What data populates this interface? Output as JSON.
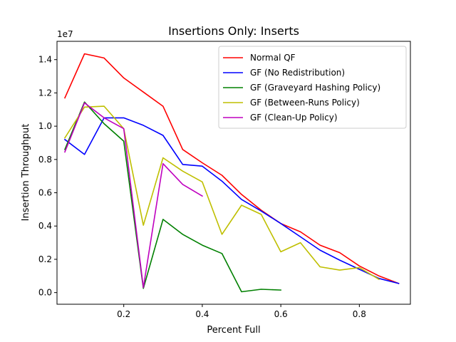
{
  "chart_data": {
    "type": "line",
    "title": "Insertions Only: Inserts",
    "xlabel": "Percent Full",
    "ylabel": "Insertion Throughput",
    "y_offset_label": "1e7",
    "xlim": [
      0.03,
      0.93
    ],
    "ylim": [
      -0.07,
      1.51
    ],
    "x_ticks": [
      0.2,
      0.4,
      0.6,
      0.8
    ],
    "x_tick_labels": [
      "0.2",
      "0.4",
      "0.6",
      "0.8"
    ],
    "y_ticks": [
      0.0,
      0.2,
      0.4,
      0.6,
      0.8,
      1.0,
      1.2,
      1.4
    ],
    "y_tick_labels": [
      "0.0",
      "0.2",
      "0.4",
      "0.6",
      "0.8",
      "1.0",
      "1.2",
      "1.4"
    ],
    "grid": false,
    "legend_position": "top-right",
    "series": [
      {
        "name": "Normal QF",
        "color": "#ff0000",
        "x": [
          0.05,
          0.1,
          0.15,
          0.2,
          0.25,
          0.3,
          0.35,
          0.4,
          0.45,
          0.5,
          0.55,
          0.6,
          0.65,
          0.7,
          0.75,
          0.8,
          0.85,
          0.9
        ],
        "y": [
          1.17,
          1.435,
          1.41,
          1.29,
          1.205,
          1.12,
          0.86,
          0.78,
          0.705,
          0.59,
          0.495,
          0.415,
          0.365,
          0.285,
          0.24,
          0.16,
          0.1,
          0.055
        ]
      },
      {
        "name": "GF (No Redistribution)",
        "color": "#0000ff",
        "x": [
          0.05,
          0.1,
          0.15,
          0.2,
          0.25,
          0.3,
          0.35,
          0.4,
          0.45,
          0.5,
          0.55,
          0.6,
          0.65,
          0.7,
          0.75,
          0.8,
          0.85,
          0.9
        ],
        "y": [
          0.92,
          0.83,
          1.05,
          1.05,
          1.005,
          0.945,
          0.77,
          0.76,
          0.67,
          0.56,
          0.49,
          0.415,
          0.335,
          0.255,
          0.195,
          0.14,
          0.085,
          0.055
        ]
      },
      {
        "name": "GF (Graveyard Hashing Policy)",
        "color": "#008000",
        "x": [
          0.05,
          0.1,
          0.15,
          0.2,
          0.25,
          0.3,
          0.35,
          0.4,
          0.45,
          0.5,
          0.55,
          0.6
        ],
        "y": [
          0.86,
          1.145,
          1.015,
          0.91,
          0.025,
          0.44,
          0.35,
          0.285,
          0.235,
          0.005,
          0.02,
          0.015
        ]
      },
      {
        "name": "GF (Between-Runs Policy)",
        "color": "#bfbf00",
        "x": [
          0.05,
          0.1,
          0.15,
          0.2,
          0.25,
          0.3,
          0.35,
          0.4,
          0.45,
          0.5,
          0.55,
          0.6,
          0.65,
          0.7,
          0.75,
          0.8,
          0.85
        ],
        "y": [
          0.93,
          1.115,
          1.12,
          0.985,
          0.405,
          0.81,
          0.73,
          0.665,
          0.35,
          0.525,
          0.47,
          0.245,
          0.3,
          0.155,
          0.135,
          0.15,
          0.08
        ]
      },
      {
        "name": "GF (Clean-Up Policy)",
        "color": "#bf00bf",
        "x": [
          0.05,
          0.1,
          0.15,
          0.2,
          0.25,
          0.3,
          0.35,
          0.4
        ],
        "y": [
          0.845,
          1.14,
          1.05,
          0.985,
          0.03,
          0.775,
          0.65,
          0.58
        ]
      }
    ]
  }
}
